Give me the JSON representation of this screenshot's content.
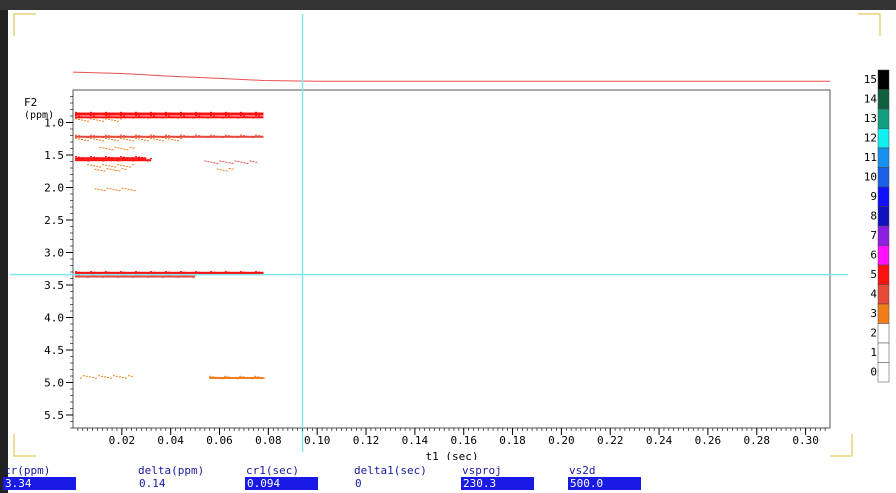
{
  "window": {
    "border_color": "#333333",
    "corner_mark_color": "#e8d27a"
  },
  "chart_data": {
    "type": "heatmap",
    "title": "",
    "xlabel": "t1 (sec)",
    "ylabel": "F2 (ppm)",
    "xlim": [
      0.0,
      0.31
    ],
    "ylim": [
      0.5,
      5.7
    ],
    "y_inverted": true,
    "x_ticks": [
      "0.02",
      "0.04",
      "0.06",
      "0.08",
      "0.10",
      "0.12",
      "0.14",
      "0.16",
      "0.18",
      "0.20",
      "0.22",
      "0.24",
      "0.26",
      "0.28",
      "0.30"
    ],
    "x_tick_values": [
      0.02,
      0.04,
      0.06,
      0.08,
      0.1,
      0.12,
      0.14,
      0.16,
      0.18,
      0.2,
      0.22,
      0.24,
      0.26,
      0.28,
      0.3
    ],
    "y_ticks": [
      "1.0",
      "1.5",
      "2.0",
      "2.5",
      "3.0",
      "3.5",
      "4.0",
      "4.5",
      "5.0",
      "5.5"
    ],
    "y_tick_values": [
      1.0,
      1.5,
      2.0,
      2.5,
      3.0,
      3.5,
      4.0,
      4.5,
      5.0,
      5.5
    ],
    "cursor": {
      "x": 0.094,
      "y": 3.34,
      "color": "#7ee8f0"
    },
    "projection": {
      "color": "#e85050",
      "points": [
        [
          0.0,
          0.15
        ],
        [
          0.02,
          0.25
        ],
        [
          0.04,
          0.45
        ],
        [
          0.06,
          0.6
        ],
        [
          0.078,
          0.75
        ],
        [
          0.1,
          0.8
        ],
        [
          0.31,
          0.8
        ]
      ]
    },
    "peaks": [
      {
        "ppm": 0.87,
        "x_start": 0.0,
        "x_end": 0.078,
        "level": 5,
        "weight": 3
      },
      {
        "ppm": 0.92,
        "x_start": 0.0,
        "x_end": 0.078,
        "level": 5,
        "weight": 2
      },
      {
        "ppm": 0.97,
        "x_start": 0.0,
        "x_end": 0.02,
        "level": 3,
        "weight": 1
      },
      {
        "ppm": 1.22,
        "x_start": 0.0,
        "x_end": 0.078,
        "level": 4,
        "weight": 2
      },
      {
        "ppm": 1.27,
        "x_start": 0.0,
        "x_end": 0.045,
        "level": 3,
        "weight": 1
      },
      {
        "ppm": 1.4,
        "x_start": 0.01,
        "x_end": 0.025,
        "level": 3,
        "weight": 1
      },
      {
        "ppm": 1.55,
        "x_start": 0.0,
        "x_end": 0.03,
        "level": 5,
        "weight": 2
      },
      {
        "ppm": 1.58,
        "x_start": 0.0,
        "x_end": 0.032,
        "level": 5,
        "weight": 2
      },
      {
        "ppm": 1.61,
        "x_start": 0.053,
        "x_end": 0.075,
        "level": 4,
        "weight": 1
      },
      {
        "ppm": 1.67,
        "x_start": 0.005,
        "x_end": 0.025,
        "level": 3,
        "weight": 1
      },
      {
        "ppm": 1.73,
        "x_start": 0.008,
        "x_end": 0.022,
        "level": 3,
        "weight": 1
      },
      {
        "ppm": 1.73,
        "x_start": 0.058,
        "x_end": 0.066,
        "level": 3,
        "weight": 1
      },
      {
        "ppm": 2.03,
        "x_start": 0.008,
        "x_end": 0.026,
        "level": 3,
        "weight": 1
      },
      {
        "ppm": 3.32,
        "x_start": 0.0,
        "x_end": 0.078,
        "level": 5,
        "weight": 3
      },
      {
        "ppm": 3.37,
        "x_start": 0.0,
        "x_end": 0.05,
        "level": 4,
        "weight": 2
      },
      {
        "ppm": 4.92,
        "x_start": 0.002,
        "x_end": 0.024,
        "level": 3,
        "weight": 1
      },
      {
        "ppm": 4.93,
        "x_start": 0.055,
        "x_end": 0.078,
        "level": 3,
        "weight": 2
      }
    ],
    "colorbar": {
      "levels": [
        "0",
        "1",
        "2",
        "3",
        "4",
        "5",
        "6",
        "7",
        "8",
        "9",
        "10",
        "11",
        "12",
        "13",
        "14",
        "15"
      ],
      "colors": [
        "#ffffff",
        "#ffffff",
        "#ffffff",
        "#f07d1a",
        "#e84a3a",
        "#ff1010",
        "#ff10ff",
        "#8a20e0",
        "#1010c0",
        "#1010ff",
        "#1860e8",
        "#1890f0",
        "#10f0f0",
        "#10a080",
        "#106040",
        "#000000"
      ]
    }
  },
  "status_bar": {
    "fields": [
      {
        "label": "cr(ppm)",
        "value": "3.34",
        "boxed": true
      },
      {
        "label": "delta(ppm)",
        "value": "0.14",
        "boxed": false
      },
      {
        "label": "cr1(sec)",
        "value": "0.094",
        "boxed": true
      },
      {
        "label": "delta1(sec)",
        "value": "0",
        "boxed": false
      },
      {
        "label": "vsproj",
        "value": "230.3",
        "boxed": true
      },
      {
        "label": "vs2d",
        "value": "500.0",
        "boxed": true
      }
    ]
  }
}
